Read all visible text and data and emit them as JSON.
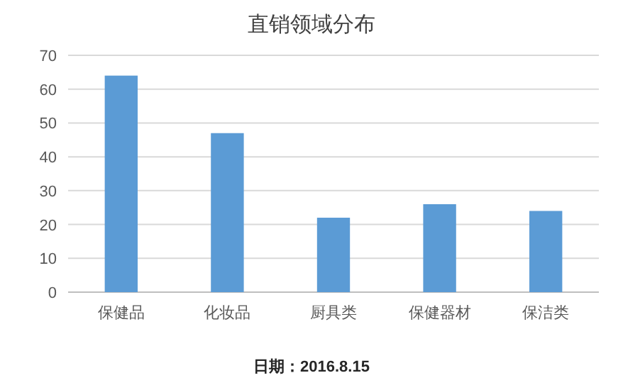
{
  "chart_data": {
    "type": "bar",
    "title": "直销领域分布",
    "categories": [
      "保健品",
      "化妆品",
      "厨具类",
      "保健器材",
      "保洁类"
    ],
    "values": [
      64,
      47,
      22,
      26,
      24
    ],
    "color": "#5b9bd5",
    "ylim": [
      0,
      70
    ],
    "yticks": [
      0,
      10,
      20,
      30,
      40,
      50,
      60,
      70
    ],
    "grid": "y",
    "annotations": [
      "日期：2016.8.15"
    ]
  }
}
